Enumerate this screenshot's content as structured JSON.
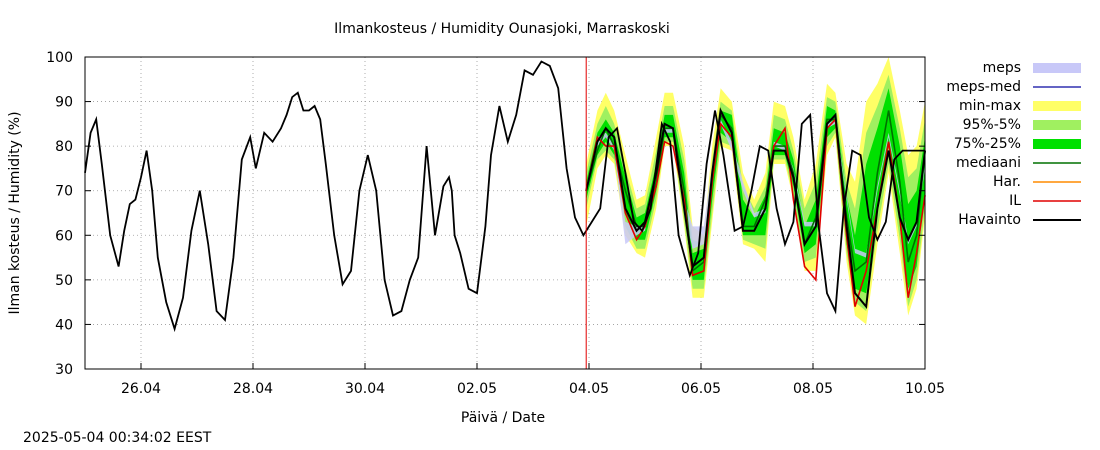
{
  "footer": {
    "timestamp": "2025-05-04 00:34:02 EEST"
  },
  "chart_data": {
    "type": "line",
    "title": "Ilmankosteus / Humidity  Ounasjoki, Marraskoski",
    "xlabel": "Päivä / Date",
    "ylabel": "Ilman kosteus / Humidity (%)",
    "ylim": [
      30,
      100
    ],
    "yticks": [
      30,
      40,
      50,
      60,
      70,
      80,
      90,
      100
    ],
    "xlim_days": [
      0,
      15
    ],
    "xtick_labels": [
      {
        "day": 1,
        "label": "26.04"
      },
      {
        "day": 3,
        "label": "28.04"
      },
      {
        "day": 5,
        "label": "30.04"
      },
      {
        "day": 7,
        "label": "02.05"
      },
      {
        "day": 9,
        "label": "04.05"
      },
      {
        "day": 11,
        "label": "06.05"
      },
      {
        "day": 13,
        "label": "08.05"
      },
      {
        "day": 15,
        "label": "10.05"
      }
    ],
    "grid": true,
    "forecast_start_day": 8.95,
    "legend": [
      {
        "label": "meps",
        "color": "#c8c8f8",
        "style": "band"
      },
      {
        "label": "meps-med",
        "color": "#3030b0",
        "style": "line"
      },
      {
        "label": "min-max",
        "color": "#ffff66",
        "style": "band"
      },
      {
        "label": "95%-5%",
        "color": "#a0f060",
        "style": "band"
      },
      {
        "label": "75%-25%",
        "color": "#00e000",
        "style": "band"
      },
      {
        "label": "mediaani",
        "color": "#007000",
        "style": "line"
      },
      {
        "label": "Har.",
        "color": "#ff8c00",
        "style": "line"
      },
      {
        "label": "IL",
        "color": "#e00000",
        "style": "line"
      },
      {
        "label": "Havainto",
        "color": "#000000",
        "style": "line"
      }
    ],
    "observation": {
      "name": "Havainto",
      "days": [
        0,
        0.1,
        0.2,
        0.3,
        0.45,
        0.6,
        0.7,
        0.8,
        0.9,
        1.0,
        1.1,
        1.2,
        1.3,
        1.45,
        1.6,
        1.75,
        1.9,
        2.05,
        2.2,
        2.35,
        2.5,
        2.65,
        2.8,
        2.95,
        3.05,
        3.2,
        3.35,
        3.5,
        3.6,
        3.7,
        3.8,
        3.9,
        4.0,
        4.1,
        4.2,
        4.3,
        4.45,
        4.6,
        4.75,
        4.9,
        5.05,
        5.2,
        5.35,
        5.5,
        5.65,
        5.8,
        5.95,
        6.1,
        6.25,
        6.4,
        6.5,
        6.55,
        6.6,
        6.7,
        6.85,
        7.0,
        7.15,
        7.25,
        7.4,
        7.55,
        7.7,
        7.85,
        8.0,
        8.15,
        8.3,
        8.45,
        8.6,
        8.75,
        8.9,
        9.05,
        9.2,
        9.35,
        9.5,
        9.65,
        9.8,
        9.95,
        10.1,
        10.3,
        10.45,
        10.6,
        10.8,
        10.95,
        11.1,
        11.25,
        11.4,
        11.6,
        11.75,
        11.9,
        12.05,
        12.2,
        12.35,
        12.5,
        12.65,
        12.8,
        12.95,
        13.1,
        13.25,
        13.4,
        13.55,
        13.7,
        13.85,
        14.0,
        14.15,
        14.3,
        14.45,
        14.6,
        14.75,
        14.9,
        15.0
      ],
      "values": [
        74,
        83,
        86,
        76,
        60,
        53,
        61,
        67,
        68,
        73,
        79,
        70,
        55,
        45,
        39,
        46,
        61,
        70,
        58,
        43,
        41,
        55,
        77,
        82,
        75,
        83,
        81,
        84,
        87,
        91,
        92,
        88,
        88,
        89,
        86,
        76,
        60,
        49,
        52,
        70,
        78,
        70,
        50,
        42,
        43,
        50,
        55,
        80,
        60,
        71,
        73,
        70,
        60,
        56,
        48,
        47,
        62,
        78,
        89,
        81,
        87,
        97,
        96,
        99,
        98,
        93,
        75,
        64,
        60,
        63,
        66,
        82,
        84,
        74,
        63,
        61,
        66,
        85,
        81,
        60,
        51,
        56,
        76,
        88,
        78,
        61,
        62,
        70,
        80,
        79,
        66,
        58,
        63,
        85,
        87,
        62,
        47,
        43,
        66,
        79,
        78,
        64,
        59,
        63,
        77,
        79,
        79,
        79,
        79
      ]
    },
    "forecast_days": [
      8.95,
      9.15,
      9.3,
      9.45,
      9.65,
      9.85,
      10.0,
      10.2,
      10.35,
      10.5,
      10.7,
      10.85,
      11.05,
      11.2,
      11.35,
      11.55,
      11.75,
      11.95,
      12.15,
      12.3,
      12.5,
      12.65,
      12.85,
      13.05,
      13.25,
      13.4,
      13.6,
      13.75,
      13.95,
      14.15,
      14.35,
      14.55,
      14.7,
      14.85,
      15.0
    ],
    "series": [
      {
        "name": "mediaani",
        "values": [
          70,
          79,
          84,
          80,
          70,
          62,
          62,
          72,
          84,
          84,
          70,
          52,
          54,
          72,
          87,
          84,
          62,
          62,
          68,
          80,
          80,
          74,
          58,
          64,
          86,
          86,
          64,
          52,
          54,
          74,
          88,
          72,
          54,
          60,
          79
        ]
      },
      {
        "name": "IL",
        "values": [
          70,
          82,
          80,
          80,
          65,
          59,
          62,
          71,
          81,
          80,
          68,
          51,
          52,
          72,
          85,
          82,
          61,
          61,
          66,
          80,
          84,
          68,
          53,
          50,
          84,
          86,
          60,
          44,
          52,
          66,
          81,
          64,
          46,
          56,
          69
        ]
      },
      {
        "name": "Havainto-fc",
        "values": [
          70,
          81,
          84,
          82,
          66,
          61,
          63,
          74,
          85,
          84,
          66,
          53,
          55,
          74,
          88,
          83,
          61,
          61,
          66,
          79,
          79,
          73,
          58,
          62,
          85,
          87,
          62,
          47,
          44,
          66,
          79,
          64,
          59,
          63,
          79
        ]
      }
    ],
    "bands": [
      {
        "name": "min-max",
        "lower": [
          62,
          75,
          78,
          76,
          60,
          56,
          55,
          66,
          80,
          80,
          62,
          46,
          46,
          63,
          80,
          79,
          58,
          57,
          54,
          76,
          76,
          68,
          52,
          52,
          78,
          82,
          54,
          42,
          40,
          58,
          74,
          56,
          42,
          48,
          64
        ],
        "upper": [
          76,
          88,
          92,
          88,
          78,
          68,
          69,
          82,
          92,
          92,
          80,
          62,
          60,
          80,
          93,
          90,
          74,
          68,
          74,
          90,
          89,
          82,
          68,
          76,
          94,
          92,
          76,
          72,
          90,
          94,
          100,
          88,
          78,
          80,
          90
        ]
      },
      {
        "name": "95%-5%",
        "lower": [
          66,
          77,
          79,
          77,
          62,
          57,
          57,
          68,
          81,
          81,
          63,
          48,
          48,
          65,
          81,
          80,
          59,
          58,
          57,
          77,
          77,
          69,
          54,
          55,
          80,
          83,
          56,
          45,
          43,
          61,
          76,
          59,
          44,
          50,
          66
        ],
        "upper": [
          74,
          85,
          89,
          85,
          75,
          66,
          67,
          79,
          89,
          89,
          77,
          59,
          58,
          77,
          90,
          88,
          71,
          66,
          71,
          87,
          86,
          79,
          66,
          72,
          91,
          90,
          72,
          66,
          83,
          89,
          96,
          84,
          73,
          75,
          86
        ]
      },
      {
        "name": "75%-25%",
        "lower": [
          68,
          78,
          81,
          78,
          65,
          59,
          59,
          70,
          82,
          82,
          66,
          50,
          50,
          68,
          83,
          81,
          60,
          60,
          60,
          78,
          78,
          71,
          56,
          58,
          82,
          84,
          58,
          48,
          47,
          65,
          80,
          62,
          48,
          53,
          70
        ],
        "upper": [
          72,
          83,
          86,
          83,
          73,
          64,
          65,
          76,
          87,
          87,
          74,
          56,
          57,
          75,
          88,
          87,
          68,
          64,
          69,
          84,
          83,
          77,
          62,
          68,
          89,
          88,
          69,
          60,
          76,
          84,
          93,
          80,
          67,
          70,
          82
        ]
      },
      {
        "name": "meps",
        "lower": [
          70,
          80,
          82,
          79,
          58,
          60,
          61,
          74,
          83,
          83,
          65,
          57,
          58,
          74,
          85,
          79,
          70,
          64,
          65,
          80,
          79,
          74,
          62,
          62,
          84,
          85,
          68,
          56,
          55,
          70,
          82,
          69,
          58,
          62,
          75
        ],
        "upper": [
          71,
          82,
          83,
          80,
          63,
          62,
          62,
          75,
          84,
          84,
          68,
          62,
          62,
          76,
          86,
          81,
          72,
          65,
          66,
          81,
          80,
          75,
          63,
          63,
          85,
          86,
          69,
          57,
          56,
          71,
          83,
          70,
          59,
          63,
          76
        ]
      }
    ]
  }
}
